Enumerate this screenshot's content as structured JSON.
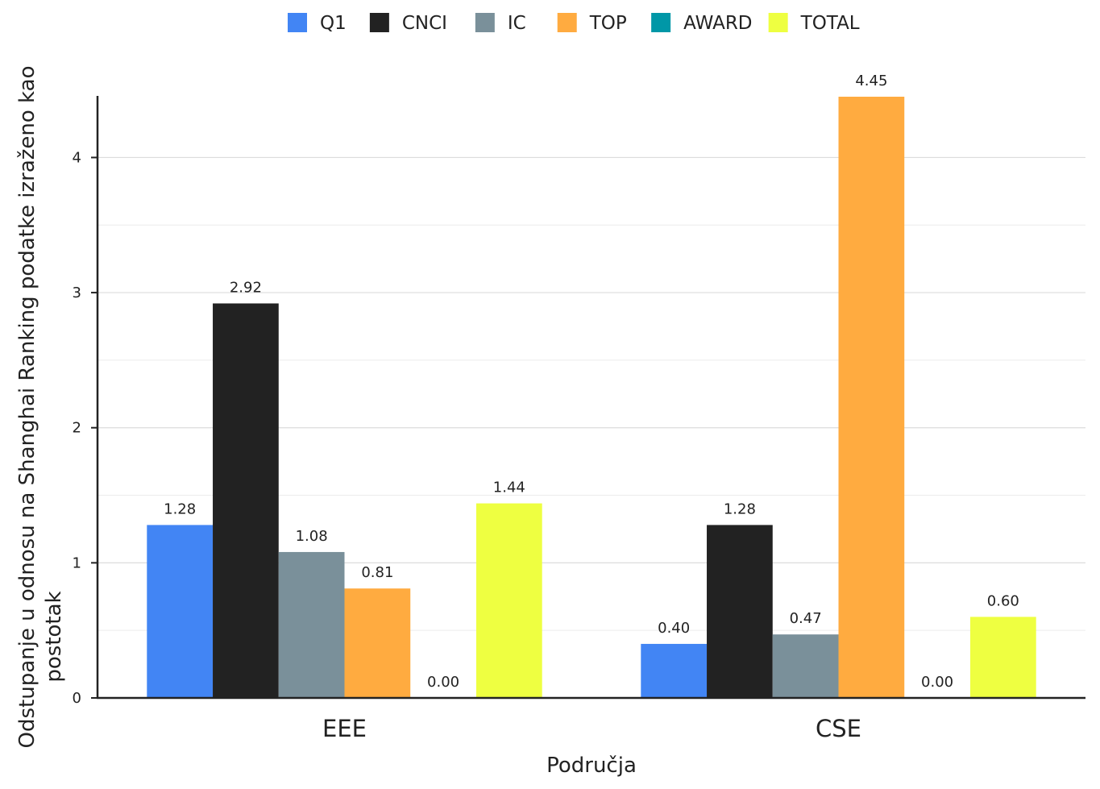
{
  "chart_data": {
    "type": "bar",
    "categories": [
      "EEE",
      "CSE"
    ],
    "series": [
      {
        "name": "Q1",
        "values": [
          1.28,
          0.4
        ],
        "color": "#4285f4"
      },
      {
        "name": "CNCI",
        "values": [
          2.92,
          1.28
        ],
        "color": "#222222"
      },
      {
        "name": "IC",
        "values": [
          1.08,
          0.47
        ],
        "color": "#7a909a"
      },
      {
        "name": "TOP",
        "values": [
          0.81,
          4.45
        ],
        "color": "#ffab40"
      },
      {
        "name": "AWARD",
        "values": [
          0.0,
          0.0
        ],
        "color": "#0097a7"
      },
      {
        "name": "TOTAL",
        "values": [
          1.44,
          0.6
        ],
        "color": "#eeff41"
      }
    ],
    "value_labels": [
      [
        "1.28",
        "0.40"
      ],
      [
        "2.92",
        "1.28"
      ],
      [
        "1.08",
        "0.47"
      ],
      [
        "0.81",
        "4.45"
      ],
      [
        "0.00",
        "0.00"
      ],
      [
        "1.44",
        "0.60"
      ]
    ],
    "xlabel": "Područja",
    "ylabel_lines": [
      "Odstupanje u odnosu na Shanghai Ranking podatke izraženo kao",
      "postotak"
    ],
    "ylim": [
      0,
      4.45
    ],
    "yticks": [
      0,
      1,
      2,
      3,
      4
    ],
    "ytick_labels": [
      "0",
      "1",
      "2",
      "3",
      "4"
    ],
    "minor_gridlines": [
      0.5,
      1.5,
      2.5,
      3.5
    ],
    "grid": true,
    "legend_position": "top"
  }
}
